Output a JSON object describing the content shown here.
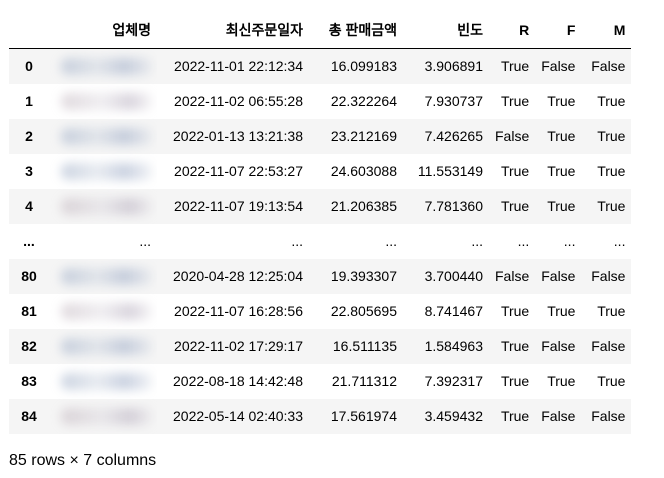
{
  "table": {
    "headers": [
      "",
      "업체명",
      "최신주문일자",
      "총 판매금액",
      "빈도",
      "R",
      "F",
      "M"
    ],
    "rows": [
      {
        "index": "0",
        "blurred": true,
        "date": "2022-11-01 22:12:34",
        "sales": "16.099183",
        "freq": "3.906891",
        "r": "True",
        "f": "False",
        "m": "False"
      },
      {
        "index": "1",
        "blurred": true,
        "date": "2022-11-02 06:55:28",
        "sales": "22.322264",
        "freq": "7.930737",
        "r": "True",
        "f": "True",
        "m": "True"
      },
      {
        "index": "2",
        "blurred": true,
        "date": "2022-01-13 13:21:38",
        "sales": "23.212169",
        "freq": "7.426265",
        "r": "False",
        "f": "True",
        "m": "True"
      },
      {
        "index": "3",
        "blurred": true,
        "date": "2022-11-07 22:53:27",
        "sales": "24.603088",
        "freq": "11.553149",
        "r": "True",
        "f": "True",
        "m": "True"
      },
      {
        "index": "4",
        "blurred": true,
        "date": "2022-11-07 19:13:54",
        "sales": "21.206385",
        "freq": "7.781360",
        "r": "True",
        "f": "True",
        "m": "True"
      },
      {
        "index": "...",
        "blurred": false,
        "ellipsis": "...",
        "date": "...",
        "sales": "...",
        "freq": "...",
        "r": "...",
        "f": "...",
        "m": "..."
      },
      {
        "index": "80",
        "blurred": true,
        "date": "2020-04-28 12:25:04",
        "sales": "19.393307",
        "freq": "3.700440",
        "r": "False",
        "f": "False",
        "m": "False"
      },
      {
        "index": "81",
        "blurred": true,
        "date": "2022-11-07 16:28:56",
        "sales": "22.805695",
        "freq": "8.741467",
        "r": "True",
        "f": "True",
        "m": "True"
      },
      {
        "index": "82",
        "blurred": true,
        "date": "2022-11-02 17:29:17",
        "sales": "16.511135",
        "freq": "1.584963",
        "r": "True",
        "f": "False",
        "m": "False"
      },
      {
        "index": "83",
        "blurred": true,
        "date": "2022-08-18 14:42:48",
        "sales": "21.711312",
        "freq": "7.392317",
        "r": "True",
        "f": "True",
        "m": "True"
      },
      {
        "index": "84",
        "blurred": true,
        "date": "2022-05-14 02:40:33",
        "sales": "17.561974",
        "freq": "3.459432",
        "r": "True",
        "f": "False",
        "m": "False"
      }
    ]
  },
  "footer": "85 rows × 7 columns"
}
